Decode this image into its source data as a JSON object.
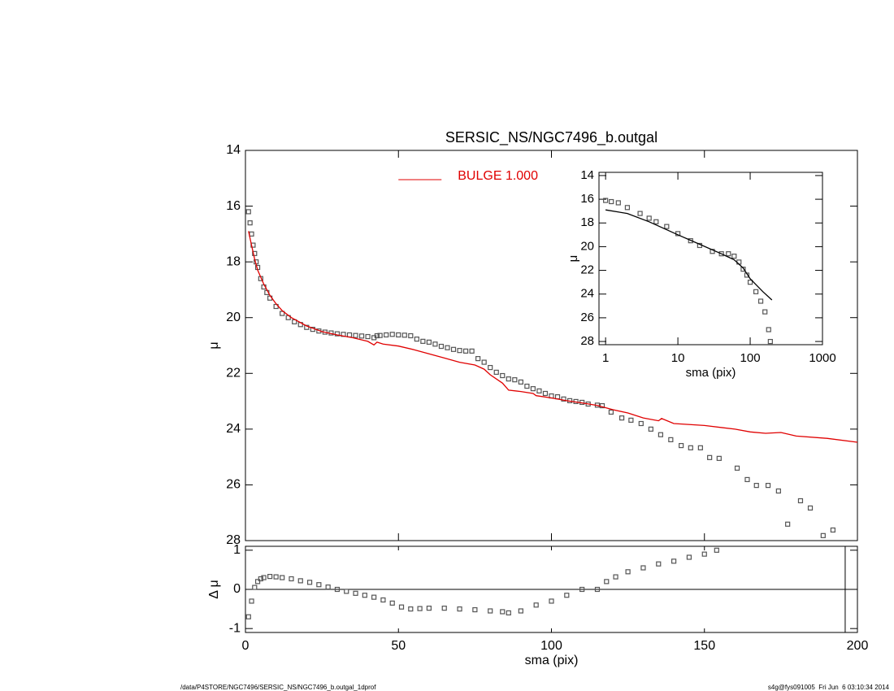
{
  "chart_data": [
    {
      "type": "scatter",
      "title": "SERSIC_NS/NGC7496_b.outgal",
      "ylabel": "μ",
      "xlim": [
        0,
        200
      ],
      "ylim": [
        14,
        28
      ],
      "invert_y": true,
      "xticks": [
        0,
        50,
        100,
        150,
        200
      ],
      "show_xtick_labels": false,
      "yticks": [
        14,
        16,
        18,
        20,
        22,
        24,
        26,
        28
      ],
      "legend": "upper-center",
      "series": [
        {
          "mode": "markers",
          "color": "#555555",
          "x": [
            1,
            1.5,
            2,
            2.5,
            3,
            3.5,
            4,
            5,
            6,
            7,
            8,
            10,
            12,
            14,
            16,
            18,
            20,
            22,
            24,
            26,
            28,
            30,
            32,
            34,
            36,
            38,
            40,
            42,
            43,
            44,
            46,
            48,
            50,
            52,
            54,
            56,
            58,
            60,
            62,
            64,
            66,
            68,
            70,
            72,
            74,
            76,
            78,
            80,
            82,
            84,
            86,
            88,
            90,
            92,
            94,
            96,
            98,
            100,
            102,
            104,
            106,
            108,
            110,
            112,
            115,
            116.6,
            119.5,
            123,
            126,
            129.3,
            132.5,
            135.7,
            139,
            142.4,
            145.5,
            148.7,
            151.7,
            154.8,
            160.7,
            164,
            167,
            170.8,
            174.2,
            177.2,
            181.4,
            184.6,
            188.8,
            192
          ],
          "values": [
            16.2,
            16.6,
            17.0,
            17.4,
            17.7,
            18.0,
            18.2,
            18.6,
            18.9,
            19.1,
            19.3,
            19.6,
            19.85,
            20.0,
            20.15,
            20.25,
            20.35,
            20.42,
            20.48,
            20.52,
            20.55,
            20.58,
            20.6,
            20.62,
            20.64,
            20.66,
            20.68,
            20.72,
            20.65,
            20.64,
            20.62,
            20.6,
            20.62,
            20.63,
            20.65,
            20.77,
            20.85,
            20.88,
            20.95,
            21.03,
            21.08,
            21.14,
            21.18,
            21.2,
            21.2,
            21.47,
            21.6,
            21.79,
            21.96,
            22.08,
            22.2,
            22.23,
            22.31,
            22.46,
            22.55,
            22.63,
            22.72,
            22.81,
            22.84,
            22.92,
            22.98,
            23.01,
            23.04,
            23.1,
            23.14,
            23.16,
            23.39,
            23.6,
            23.68,
            23.8,
            24.0,
            24.2,
            24.38,
            24.59,
            24.67,
            24.67,
            25.02,
            25.05,
            25.4,
            25.81,
            26.02,
            26.02,
            26.22,
            27.41,
            26.57,
            26.83,
            27.82,
            27.62
          ]
        },
        {
          "mode": "line",
          "name": "BULGE  1.000",
          "color": "#e00000",
          "x": [
            1,
            2,
            3,
            4,
            6,
            8,
            10,
            12,
            15,
            20,
            25,
            30,
            35,
            40,
            42,
            43,
            45,
            50,
            55,
            60,
            65,
            70,
            75,
            78,
            80,
            84,
            86,
            90,
            94,
            95,
            100,
            105,
            110,
            115,
            120,
            125,
            130,
            135,
            136,
            140,
            150,
            160,
            165,
            170,
            175,
            180,
            190,
            200
          ],
          "values": [
            16.9,
            17.4,
            17.9,
            18.3,
            18.8,
            19.2,
            19.5,
            19.75,
            20.0,
            20.3,
            20.5,
            20.62,
            20.72,
            20.85,
            20.98,
            20.88,
            20.95,
            21.02,
            21.15,
            21.3,
            21.45,
            21.6,
            21.7,
            21.85,
            22.05,
            22.35,
            22.6,
            22.65,
            22.72,
            22.8,
            22.88,
            22.98,
            23.06,
            23.15,
            23.3,
            23.42,
            23.6,
            23.7,
            23.62,
            23.8,
            23.87,
            24.0,
            24.1,
            24.15,
            24.12,
            24.25,
            24.33,
            24.47
          ]
        }
      ]
    },
    {
      "type": "scatter",
      "xlabel": "sma (pix)",
      "ylabel": "Δ μ",
      "xlim": [
        0,
        200
      ],
      "ylim": [
        -1.1,
        1.1
      ],
      "invert_y": false,
      "xticks": [
        0,
        50,
        100,
        150,
        200
      ],
      "show_xtick_labels": true,
      "yticks": [
        -1,
        0,
        1
      ],
      "hline": 0,
      "vline": 196,
      "series": [
        {
          "mode": "markers",
          "color": "#555555",
          "x": [
            1,
            2,
            3,
            4,
            5,
            6,
            8,
            10,
            12,
            15,
            18,
            21,
            24,
            27,
            30,
            33,
            36,
            39,
            42,
            45,
            48,
            51,
            54,
            57,
            60,
            65,
            70,
            75,
            80,
            84,
            86,
            90,
            95,
            100,
            105,
            110,
            115,
            118,
            121,
            125,
            130,
            135,
            140,
            145,
            150,
            154
          ],
          "values": [
            -0.7,
            -0.3,
            0.05,
            0.2,
            0.27,
            0.3,
            0.33,
            0.32,
            0.3,
            0.27,
            0.22,
            0.18,
            0.12,
            0.06,
            0.0,
            -0.05,
            -0.1,
            -0.15,
            -0.2,
            -0.27,
            -0.35,
            -0.45,
            -0.5,
            -0.49,
            -0.48,
            -0.48,
            -0.5,
            -0.52,
            -0.55,
            -0.57,
            -0.6,
            -0.55,
            -0.4,
            -0.3,
            -0.15,
            0.0,
            0.0,
            0.2,
            0.32,
            0.45,
            0.55,
            0.65,
            0.72,
            0.82,
            0.9,
            1.0
          ]
        }
      ]
    },
    {
      "type": "scatter",
      "xlabel": "sma (pix)",
      "ylabel": "μ",
      "xlog": true,
      "xlim": [
        0.81,
        1000
      ],
      "ylim": [
        13.73,
        28.27
      ],
      "invert_y": true,
      "xticks": [
        1,
        10,
        100,
        1000
      ],
      "show_xtick_labels": true,
      "yticks": [
        14,
        16,
        18,
        20,
        22,
        24,
        26,
        28
      ],
      "series": [
        {
          "mode": "markers",
          "color": "#555555",
          "x": [
            1,
            1.2,
            1.5,
            2,
            3,
            4,
            5,
            7,
            10,
            15,
            20,
            30,
            40,
            50,
            60,
            70,
            80,
            90,
            100,
            120,
            140,
            160,
            180,
            190
          ],
          "values": [
            16.1,
            16.2,
            16.3,
            16.7,
            17.2,
            17.6,
            17.9,
            18.3,
            18.9,
            19.5,
            19.9,
            20.4,
            20.6,
            20.6,
            20.8,
            21.3,
            21.9,
            22.4,
            23.0,
            23.8,
            24.6,
            25.5,
            27.0,
            28.0
          ]
        },
        {
          "mode": "line",
          "color": "#000000",
          "x": [
            1,
            2,
            4,
            10,
            20,
            40,
            60,
            80,
            100,
            150,
            200
          ],
          "values": [
            16.9,
            17.2,
            17.9,
            19.0,
            19.8,
            20.6,
            21.1,
            21.8,
            22.7,
            23.8,
            24.5
          ]
        }
      ]
    }
  ],
  "footer": {
    "left": "/data/P4STORE/NGC7496/SERSIC_NS/NGC7496_b.outgal_1dprof",
    "right": "s4g@fys091005  Fri Jun  6 03:10:34 2014"
  }
}
